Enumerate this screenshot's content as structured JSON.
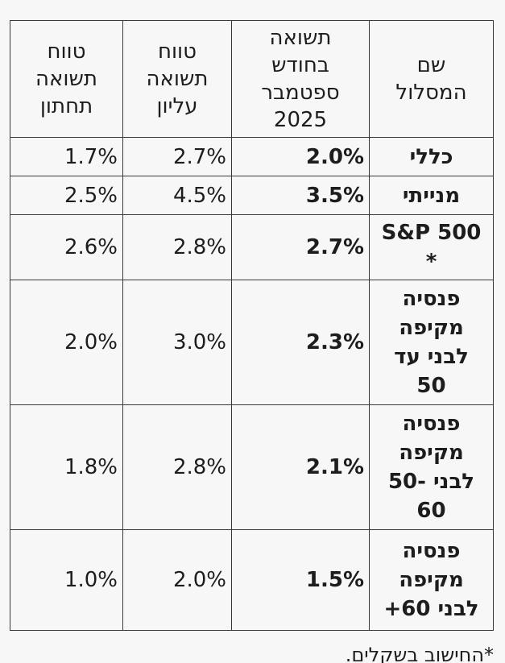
{
  "colors": {
    "background": "#f7f7f7",
    "border": "#383838",
    "text": "#1d1d1d"
  },
  "table": {
    "headers": {
      "name": "שם\nהמסלול",
      "september": "תשואה\nבחודש\nספטמבר\n2025",
      "upper": "טווח\nתשואה\nעליון",
      "lower": "טווח\nתשואה\nתחתון"
    },
    "rows": [
      {
        "name": "כללי",
        "september": "2.0%",
        "upper": "2.7%",
        "lower": "1.7%"
      },
      {
        "name": "מנייתי",
        "september": "3.5%",
        "upper": "4.5%",
        "lower": "2.5%"
      },
      {
        "name": "S&P 500\n*",
        "september": "2.7%",
        "upper": "2.8%",
        "lower": "2.6%"
      },
      {
        "name": "פנסיה\nמקיפה\nלבני עד\n50",
        "september": "2.3%",
        "upper": "3.0%",
        "lower": "2.0%"
      },
      {
        "name": "פנסיה\nמקיפה\nלבני ‪50-‬\n60",
        "september": "2.1%",
        "upper": "2.8%",
        "lower": "1.8%"
      },
      {
        "name": "פנסיה\nמקיפה\nלבני 60+",
        "september": "1.5%",
        "upper": "2.0%",
        "lower": "1.0%"
      }
    ]
  },
  "footnote": "*החישוב בשקלים.",
  "chart_data": {
    "type": "table",
    "title": "",
    "columns": [
      "שם המסלול",
      "תשואה בחודש ספטמבר 2025",
      "טווח תשואה עליון",
      "טווח תשואה תחתון"
    ],
    "categories": [
      "כללי",
      "מנייתי",
      "S&P 500 *",
      "פנסיה מקיפה לבני עד 50",
      "פנסיה מקיפה לבני 50-60",
      "פנסיה מקיפה לבני 60+"
    ],
    "series": [
      {
        "name": "תשואה בחודש ספטמבר 2025 (%)",
        "values": [
          2.0,
          3.5,
          2.7,
          2.3,
          2.1,
          1.5
        ]
      },
      {
        "name": "טווח תשואה עליון (%)",
        "values": [
          2.7,
          4.5,
          2.8,
          3.0,
          2.8,
          2.0
        ]
      },
      {
        "name": "טווח תשואה תחתון (%)",
        "values": [
          1.7,
          2.5,
          2.6,
          2.0,
          1.8,
          1.0
        ]
      }
    ],
    "footnote": "*החישוב בשקלים."
  }
}
